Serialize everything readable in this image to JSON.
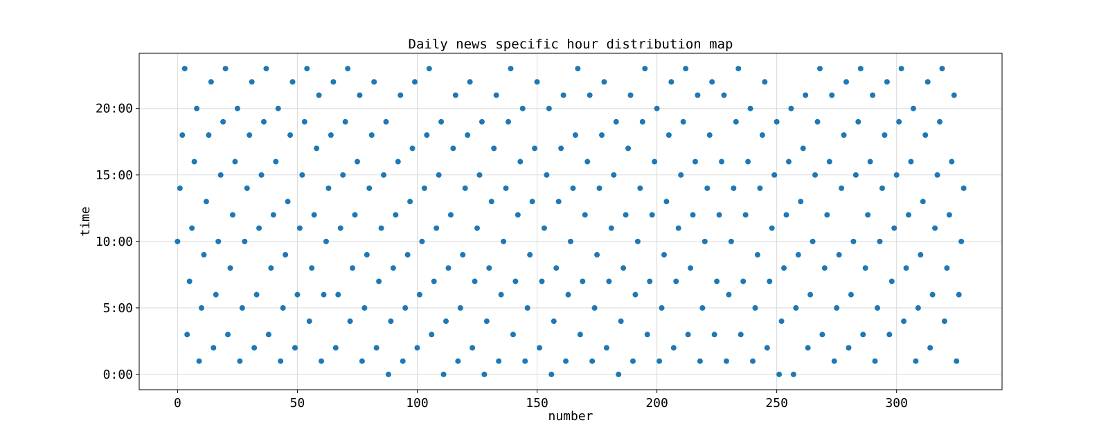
{
  "chart_data": {
    "type": "scatter",
    "title": "Daily news specific hour distribution map",
    "xlabel": "number",
    "ylabel": "time",
    "xlim": [
      -16,
      344
    ],
    "ylim": [
      -1.15,
      24.15
    ],
    "x_ticks": [
      {
        "value": 0,
        "label": "0"
      },
      {
        "value": 50,
        "label": "50"
      },
      {
        "value": 100,
        "label": "100"
      },
      {
        "value": 150,
        "label": "150"
      },
      {
        "value": 200,
        "label": "200"
      },
      {
        "value": 250,
        "label": "250"
      },
      {
        "value": 300,
        "label": "300"
      }
    ],
    "y_ticks": [
      {
        "value": 0,
        "label": "0:00"
      },
      {
        "value": 5,
        "label": "5:00"
      },
      {
        "value": 10,
        "label": "10:00"
      },
      {
        "value": 15,
        "label": "15:00"
      },
      {
        "value": 20,
        "label": "20:00"
      }
    ],
    "grid": true,
    "marker_color": "#1f77b4",
    "points": [
      [
        0,
        10
      ],
      [
        1,
        14
      ],
      [
        2,
        18
      ],
      [
        3,
        23
      ],
      [
        4,
        3
      ],
      [
        5,
        7
      ],
      [
        6,
        11
      ],
      [
        7,
        16
      ],
      [
        8,
        20
      ],
      [
        9,
        1
      ],
      [
        10,
        5
      ],
      [
        11,
        9
      ],
      [
        12,
        13
      ],
      [
        13,
        18
      ],
      [
        14,
        22
      ],
      [
        15,
        2
      ],
      [
        16,
        6
      ],
      [
        17,
        10
      ],
      [
        18,
        15
      ],
      [
        19,
        19
      ],
      [
        20,
        23
      ],
      [
        21,
        3
      ],
      [
        22,
        8
      ],
      [
        23,
        12
      ],
      [
        24,
        16
      ],
      [
        25,
        20
      ],
      [
        26,
        1
      ],
      [
        27,
        5
      ],
      [
        28,
        10
      ],
      [
        29,
        14
      ],
      [
        30,
        18
      ],
      [
        31,
        22
      ],
      [
        32,
        2
      ],
      [
        33,
        6
      ],
      [
        34,
        11
      ],
      [
        35,
        15
      ],
      [
        36,
        19
      ],
      [
        37,
        23
      ],
      [
        38,
        3
      ],
      [
        39,
        8
      ],
      [
        40,
        12
      ],
      [
        41,
        16
      ],
      [
        42,
        20
      ],
      [
        43,
        1
      ],
      [
        44,
        5
      ],
      [
        45,
        9
      ],
      [
        46,
        13
      ],
      [
        47,
        18
      ],
      [
        48,
        22
      ],
      [
        49,
        2
      ],
      [
        50,
        6
      ],
      [
        51,
        11
      ],
      [
        52,
        15
      ],
      [
        53,
        19
      ],
      [
        54,
        23
      ],
      [
        55,
        4
      ],
      [
        56,
        8
      ],
      [
        57,
        12
      ],
      [
        58,
        17
      ],
      [
        59,
        21
      ],
      [
        60,
        1
      ],
      [
        61,
        6
      ],
      [
        62,
        10
      ],
      [
        63,
        14
      ],
      [
        64,
        18
      ],
      [
        65,
        22
      ],
      [
        66,
        2
      ],
      [
        67,
        6
      ],
      [
        68,
        11
      ],
      [
        69,
        15
      ],
      [
        70,
        19
      ],
      [
        71,
        23
      ],
      [
        72,
        4
      ],
      [
        73,
        8
      ],
      [
        74,
        12
      ],
      [
        75,
        16
      ],
      [
        76,
        21
      ],
      [
        77,
        1
      ],
      [
        78,
        5
      ],
      [
        79,
        9
      ],
      [
        80,
        14
      ],
      [
        81,
        18
      ],
      [
        82,
        22
      ],
      [
        83,
        2
      ],
      [
        84,
        7
      ],
      [
        85,
        11
      ],
      [
        86,
        15
      ],
      [
        87,
        19
      ],
      [
        88,
        0
      ],
      [
        89,
        4
      ],
      [
        90,
        8
      ],
      [
        91,
        12
      ],
      [
        92,
        16
      ],
      [
        93,
        21
      ],
      [
        94,
        1
      ],
      [
        95,
        5
      ],
      [
        96,
        9
      ],
      [
        97,
        13
      ],
      [
        98,
        17
      ],
      [
        99,
        22
      ],
      [
        100,
        2
      ],
      [
        101,
        6
      ],
      [
        102,
        10
      ],
      [
        103,
        14
      ],
      [
        104,
        18
      ],
      [
        105,
        23
      ],
      [
        106,
        3
      ],
      [
        107,
        7
      ],
      [
        108,
        11
      ],
      [
        109,
        15
      ],
      [
        110,
        19
      ],
      [
        111,
        0
      ],
      [
        112,
        4
      ],
      [
        113,
        8
      ],
      [
        114,
        12
      ],
      [
        115,
        17
      ],
      [
        116,
        21
      ],
      [
        117,
        1
      ],
      [
        118,
        5
      ],
      [
        119,
        9
      ],
      [
        120,
        14
      ],
      [
        121,
        18
      ],
      [
        122,
        22
      ],
      [
        123,
        2
      ],
      [
        124,
        7
      ],
      [
        125,
        11
      ],
      [
        126,
        15
      ],
      [
        127,
        19
      ],
      [
        128,
        0
      ],
      [
        129,
        4
      ],
      [
        130,
        8
      ],
      [
        131,
        13
      ],
      [
        132,
        17
      ],
      [
        133,
        21
      ],
      [
        134,
        1
      ],
      [
        135,
        6
      ],
      [
        136,
        10
      ],
      [
        137,
        14
      ],
      [
        138,
        19
      ],
      [
        139,
        23
      ],
      [
        140,
        3
      ],
      [
        141,
        7
      ],
      [
        142,
        12
      ],
      [
        143,
        16
      ],
      [
        144,
        20
      ],
      [
        145,
        1
      ],
      [
        146,
        5
      ],
      [
        147,
        9
      ],
      [
        148,
        13
      ],
      [
        149,
        17
      ],
      [
        150,
        22
      ],
      [
        151,
        2
      ],
      [
        152,
        7
      ],
      [
        153,
        11
      ],
      [
        154,
        15
      ],
      [
        155,
        20
      ],
      [
        156,
        0
      ],
      [
        157,
        4
      ],
      [
        158,
        8
      ],
      [
        159,
        13
      ],
      [
        160,
        17
      ],
      [
        161,
        21
      ],
      [
        162,
        1
      ],
      [
        163,
        6
      ],
      [
        164,
        10
      ],
      [
        165,
        14
      ],
      [
        166,
        18
      ],
      [
        167,
        23
      ],
      [
        168,
        3
      ],
      [
        169,
        7
      ],
      [
        170,
        12
      ],
      [
        171,
        16
      ],
      [
        172,
        21
      ],
      [
        173,
        1
      ],
      [
        174,
        5
      ],
      [
        175,
        9
      ],
      [
        176,
        14
      ],
      [
        177,
        18
      ],
      [
        178,
        22
      ],
      [
        179,
        2
      ],
      [
        180,
        7
      ],
      [
        181,
        11
      ],
      [
        182,
        15
      ],
      [
        183,
        19
      ],
      [
        184,
        0
      ],
      [
        185,
        4
      ],
      [
        186,
        8
      ],
      [
        187,
        12
      ],
      [
        188,
        17
      ],
      [
        189,
        21
      ],
      [
        190,
        1
      ],
      [
        191,
        6
      ],
      [
        192,
        10
      ],
      [
        193,
        14
      ],
      [
        194,
        19
      ],
      [
        195,
        23
      ],
      [
        196,
        3
      ],
      [
        197,
        7
      ],
      [
        198,
        12
      ],
      [
        199,
        16
      ],
      [
        200,
        20
      ],
      [
        201,
        1
      ],
      [
        202,
        5
      ],
      [
        203,
        9
      ],
      [
        204,
        13
      ],
      [
        205,
        18
      ],
      [
        206,
        22
      ],
      [
        207,
        2
      ],
      [
        208,
        7
      ],
      [
        209,
        11
      ],
      [
        210,
        15
      ],
      [
        211,
        19
      ],
      [
        212,
        23
      ],
      [
        213,
        3
      ],
      [
        214,
        8
      ],
      [
        215,
        12
      ],
      [
        216,
        16
      ],
      [
        217,
        21
      ],
      [
        218,
        1
      ],
      [
        219,
        5
      ],
      [
        220,
        10
      ],
      [
        221,
        14
      ],
      [
        222,
        18
      ],
      [
        223,
        22
      ],
      [
        224,
        3
      ],
      [
        225,
        7
      ],
      [
        226,
        12
      ],
      [
        227,
        16
      ],
      [
        228,
        21
      ],
      [
        229,
        1
      ],
      [
        230,
        6
      ],
      [
        231,
        10
      ],
      [
        232,
        14
      ],
      [
        233,
        19
      ],
      [
        234,
        23
      ],
      [
        235,
        3
      ],
      [
        236,
        7
      ],
      [
        237,
        12
      ],
      [
        238,
        16
      ],
      [
        239,
        20
      ],
      [
        240,
        1
      ],
      [
        241,
        5
      ],
      [
        242,
        9
      ],
      [
        243,
        14
      ],
      [
        244,
        18
      ],
      [
        245,
        22
      ],
      [
        246,
        2
      ],
      [
        247,
        7
      ],
      [
        248,
        11
      ],
      [
        249,
        15
      ],
      [
        250,
        19
      ],
      [
        251,
        0
      ],
      [
        252,
        4
      ],
      [
        253,
        8
      ],
      [
        254,
        12
      ],
      [
        255,
        16
      ],
      [
        256,
        20
      ],
      [
        257,
        0
      ],
      [
        258,
        5
      ],
      [
        259,
        9
      ],
      [
        260,
        13
      ],
      [
        261,
        17
      ],
      [
        262,
        21
      ],
      [
        263,
        2
      ],
      [
        264,
        6
      ],
      [
        265,
        10
      ],
      [
        266,
        15
      ],
      [
        267,
        19
      ],
      [
        268,
        23
      ],
      [
        269,
        3
      ],
      [
        270,
        8
      ],
      [
        271,
        12
      ],
      [
        272,
        16
      ],
      [
        273,
        21
      ],
      [
        274,
        1
      ],
      [
        275,
        5
      ],
      [
        276,
        9
      ],
      [
        277,
        14
      ],
      [
        278,
        18
      ],
      [
        279,
        22
      ],
      [
        280,
        2
      ],
      [
        281,
        6
      ],
      [
        282,
        10
      ],
      [
        283,
        15
      ],
      [
        284,
        19
      ],
      [
        285,
        23
      ],
      [
        286,
        3
      ],
      [
        287,
        8
      ],
      [
        288,
        12
      ],
      [
        289,
        16
      ],
      [
        290,
        21
      ],
      [
        291,
        1
      ],
      [
        292,
        5
      ],
      [
        293,
        10
      ],
      [
        294,
        14
      ],
      [
        295,
        18
      ],
      [
        296,
        22
      ],
      [
        297,
        3
      ],
      [
        298,
        7
      ],
      [
        299,
        11
      ],
      [
        300,
        15
      ],
      [
        301,
        19
      ],
      [
        302,
        23
      ],
      [
        303,
        4
      ],
      [
        304,
        8
      ],
      [
        305,
        12
      ],
      [
        306,
        16
      ],
      [
        307,
        20
      ],
      [
        308,
        1
      ],
      [
        309,
        5
      ],
      [
        310,
        9
      ],
      [
        311,
        13
      ],
      [
        312,
        18
      ],
      [
        313,
        22
      ],
      [
        314,
        2
      ],
      [
        315,
        6
      ],
      [
        316,
        11
      ],
      [
        317,
        15
      ],
      [
        318,
        19
      ],
      [
        319,
        23
      ],
      [
        320,
        4
      ],
      [
        321,
        8
      ],
      [
        322,
        12
      ],
      [
        323,
        16
      ],
      [
        324,
        21
      ],
      [
        325,
        1
      ],
      [
        326,
        6
      ],
      [
        327,
        10
      ],
      [
        328,
        14
      ]
    ]
  }
}
